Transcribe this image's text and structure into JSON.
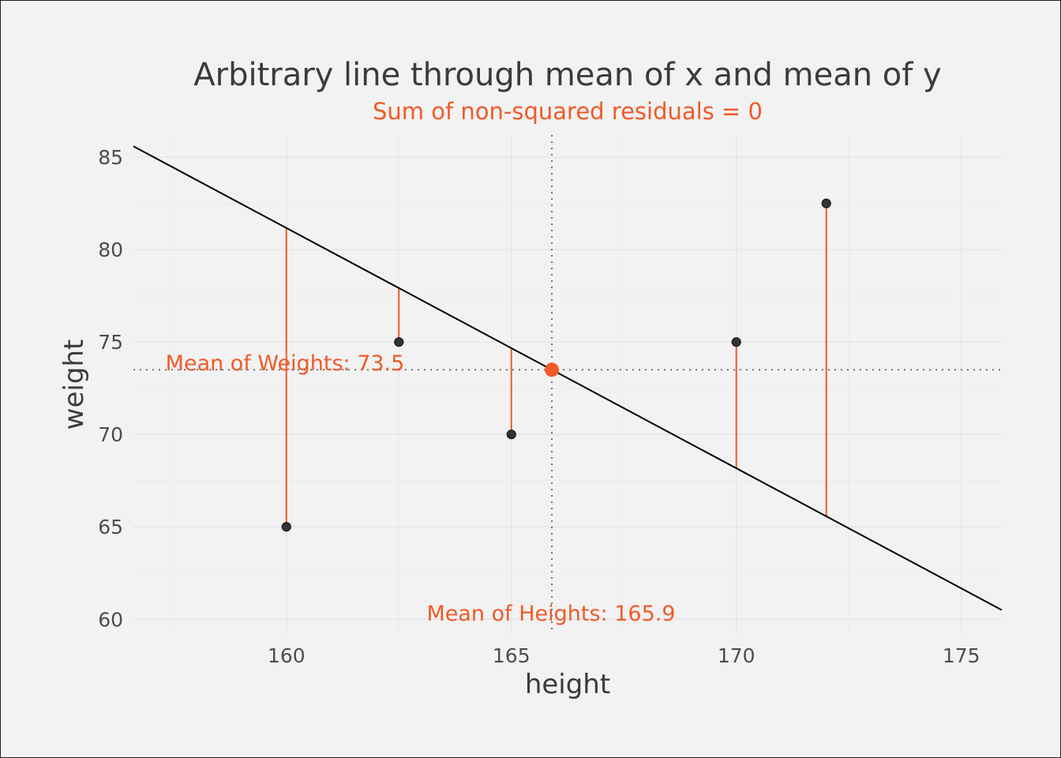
{
  "chart_data": {
    "type": "scatter",
    "title": "Arbitrary line through mean of x and mean of y",
    "subtitle": "Sum of non-squared residuals = 0",
    "xlabel": "height",
    "ylabel": "weight",
    "xlim": [
      156.6,
      175.9
    ],
    "ylim": [
      59.2,
      86.2
    ],
    "x_ticks": [
      160,
      165,
      170,
      175
    ],
    "y_ticks": [
      60,
      65,
      70,
      75,
      80,
      85
    ],
    "grid": true,
    "points": [
      {
        "x": 160.0,
        "y": 65.0
      },
      {
        "x": 162.5,
        "y": 75.0
      },
      {
        "x": 165.0,
        "y": 70.0
      },
      {
        "x": 170.0,
        "y": 75.0
      },
      {
        "x": 172.0,
        "y": 82.5
      }
    ],
    "line": {
      "slope": -1.3,
      "intercept": 289.17
    },
    "mean_point": {
      "x": 165.9,
      "y": 73.5
    },
    "colors": {
      "accent": "#f05a28",
      "points": "#333333",
      "line": "#000000"
    },
    "annotations": {
      "mean_weight": "Mean of Weights: 73.5",
      "mean_height": "Mean of Heights: 165.9"
    }
  }
}
